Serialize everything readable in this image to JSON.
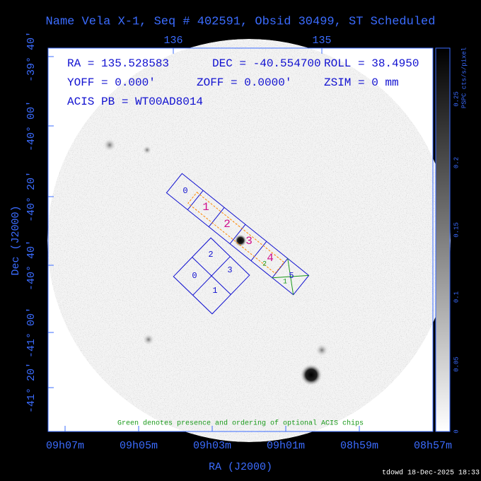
{
  "title": "Name Vela X-1, Seq # 402591, Obsid 30499, ST Scheduled",
  "top_axis": {
    "ticks": [
      "136",
      "135"
    ]
  },
  "left_axis": {
    "title": "Dec (J2000)",
    "ticks": [
      "-39° 40'",
      "-40° 00'",
      "-40° 20'",
      "-40° 40'",
      "-41° 00'",
      "-41° 20'"
    ]
  },
  "bottom_axis": {
    "title": "RA (J2000)",
    "ticks": [
      "09h07m",
      "09h05m",
      "09h03m",
      "09h01m",
      "08h59m",
      "08h57m"
    ]
  },
  "colorbar": {
    "title": "PSPC cts/s/pixel",
    "ticks": [
      "0",
      "0.05",
      "0.1",
      "0.15",
      "0.2",
      "0.25"
    ]
  },
  "info": {
    "ra": "RA = 135.528583",
    "dec": "DEC = -40.554700",
    "roll": "ROLL = 38.4950",
    "yoff": "YOFF = 0.000'",
    "zoff": "ZOFF = 0.0000'",
    "zsim": "ZSIM = 0 mm",
    "acis_pb": "ACIS PB = WT00AD8014"
  },
  "s_array": {
    "chips": [
      "0",
      "1",
      "2",
      "3",
      "4",
      "5"
    ]
  },
  "i_array": {
    "chips": [
      "0",
      "1",
      "2",
      "3"
    ]
  },
  "optional_chips": [
    "1",
    "2"
  ],
  "note": "Green denotes presence and ordering of optional ACIS chips",
  "footer": "tdowd 18-Dec-2025 18:33"
}
